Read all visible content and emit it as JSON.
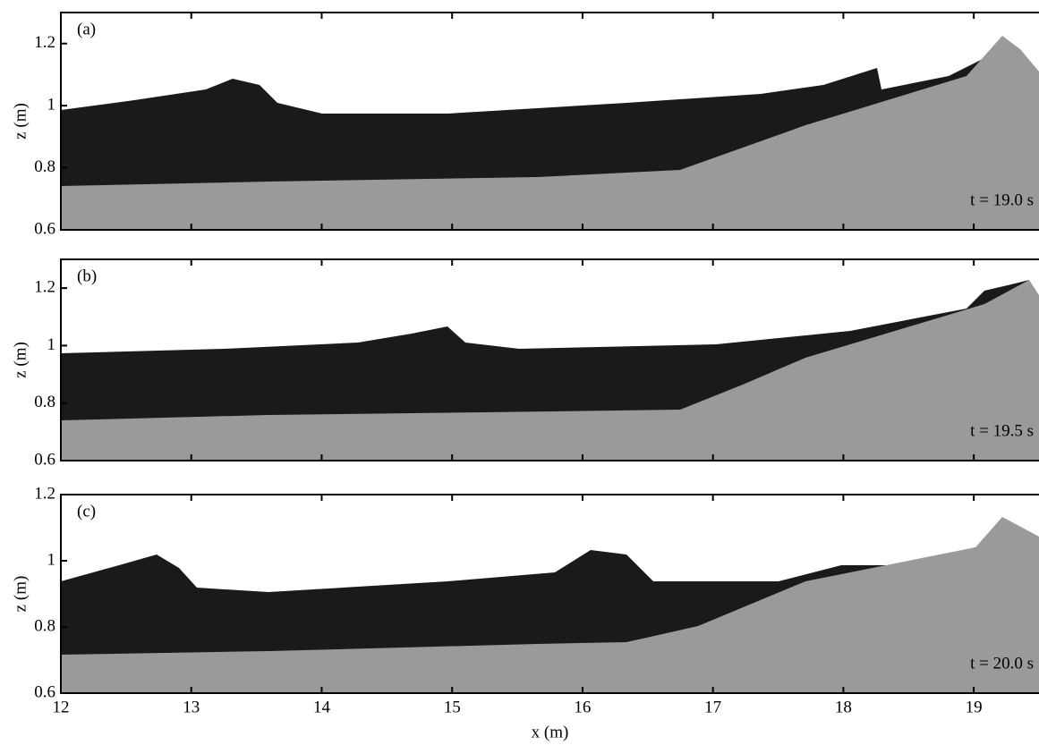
{
  "chart_data": [
    {
      "type": "profile",
      "panel": "(a)",
      "time": "t = 19.0 s",
      "ylabel": "z (m)",
      "xlim": [
        12,
        19.5
      ],
      "xticks": [
        12,
        13,
        14,
        15,
        16,
        17,
        18,
        19
      ],
      "ylim": [
        0.6,
        1.3
      ],
      "yticks": [
        0.6,
        0.8,
        1,
        1.2
      ]
    },
    {
      "type": "profile",
      "panel": "(b)",
      "time": "t = 19.5 s",
      "ylabel": "z (m)",
      "xlim": [
        12,
        19.5
      ],
      "xticks": [
        12,
        13,
        14,
        15,
        16,
        17,
        18,
        19
      ],
      "ylim": [
        0.6,
        1.3
      ],
      "yticks": [
        0.6,
        0.8,
        1,
        1.2
      ]
    },
    {
      "type": "profile",
      "panel": "(c)",
      "time": "t = 20.0 s",
      "ylabel": "z (m)",
      "xlabel": "x (m)",
      "xlim": [
        12,
        19.5
      ],
      "xticks": [
        12,
        13,
        14,
        15,
        16,
        17,
        18,
        19
      ],
      "ylim": [
        0.6,
        1.2
      ],
      "yticks": [
        0.6,
        0.8,
        1,
        1.2
      ]
    }
  ]
}
